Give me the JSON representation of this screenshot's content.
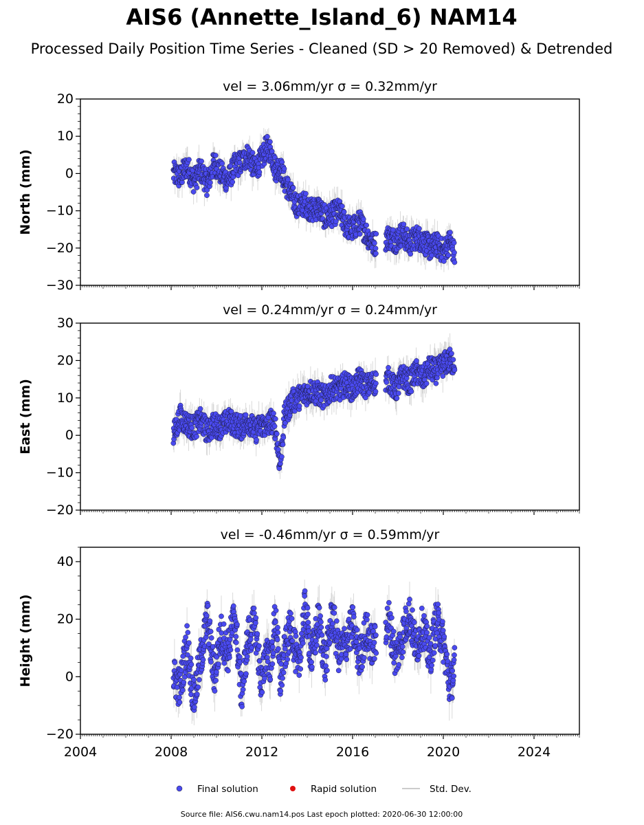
{
  "figure": {
    "title": "AIS6 (Annette_Island_6) NAM14",
    "subtitle": "Processed Daily Position Time Series - Cleaned (SD > 20 Removed) & Detrended",
    "footer": "Source file: AIS6.cwu.nam14.pos  Last epoch plotted: 2020-06-30 12:00:00",
    "legend": [
      {
        "label": "Final solution",
        "color": "#4a4af0"
      },
      {
        "label": "Rapid solution",
        "color": "#e01010"
      },
      {
        "label": "Std. Dev.",
        "color": "#cccccc"
      }
    ],
    "x_ticks": [
      "2004",
      "2008",
      "2012",
      "2016",
      "2020",
      "2024"
    ]
  },
  "chart_data": [
    {
      "type": "scatter",
      "title": "vel = 3.06mm/yr   σ = 0.32mm/yr",
      "ylabel": "North (mm)",
      "xlim": [
        2004,
        2026
      ],
      "ylim": [
        -30,
        20
      ],
      "yticks": [
        "−30",
        "−20",
        "−10",
        "0",
        "10",
        "20"
      ],
      "grid": false,
      "series": [
        {
          "name": "Final solution",
          "x": [
            2008.1,
            2008.4,
            2008.7,
            2009.0,
            2009.3,
            2009.6,
            2009.9,
            2010.2,
            2010.5,
            2010.8,
            2011.1,
            2011.4,
            2011.7,
            2012.0,
            2012.2,
            2012.4,
            2012.6,
            2012.8,
            2013.0,
            2013.3,
            2013.6,
            2013.9,
            2014.2,
            2014.5,
            2014.8,
            2015.1,
            2015.4,
            2015.7,
            2016.0,
            2016.3,
            2016.6,
            2016.9,
            2017.6,
            2017.9,
            2018.2,
            2018.5,
            2018.8,
            2019.1,
            2019.4,
            2019.7,
            2020.0,
            2020.3,
            2020.5
          ],
          "y": [
            0,
            -1,
            2,
            -2,
            1,
            -3,
            3,
            0,
            -2,
            2,
            3,
            5,
            1,
            4,
            7,
            6,
            1,
            2,
            -2,
            -6,
            -9,
            -8,
            -10,
            -9,
            -12,
            -11,
            -10,
            -14,
            -15,
            -13,
            -16,
            -19,
            -17,
            -18,
            -16,
            -19,
            -17,
            -18,
            -20,
            -19,
            -21,
            -18,
            -22
          ]
        }
      ]
    },
    {
      "type": "scatter",
      "title": "vel = 0.24mm/yr   σ = 0.24mm/yr",
      "ylabel": "East (mm)",
      "xlim": [
        2004,
        2026
      ],
      "ylim": [
        -20,
        30
      ],
      "yticks": [
        "−20",
        "−10",
        "0",
        "10",
        "20",
        "30"
      ],
      "grid": false,
      "series": [
        {
          "name": "Final solution",
          "x": [
            2008.1,
            2008.4,
            2008.7,
            2009.0,
            2009.3,
            2009.6,
            2009.9,
            2010.2,
            2010.5,
            2010.8,
            2011.1,
            2011.4,
            2011.7,
            2012.0,
            2012.2,
            2012.4,
            2012.6,
            2012.8,
            2013.0,
            2013.3,
            2013.6,
            2013.9,
            2014.2,
            2014.5,
            2014.8,
            2015.1,
            2015.4,
            2015.7,
            2016.0,
            2016.3,
            2016.6,
            2016.9,
            2017.6,
            2017.9,
            2018.2,
            2018.5,
            2018.8,
            2019.1,
            2019.4,
            2019.7,
            2020.0,
            2020.3,
            2020.5
          ],
          "y": [
            0,
            5,
            3,
            2,
            4,
            1,
            3,
            2,
            4,
            3,
            2,
            4,
            1,
            3,
            2,
            4,
            2,
            -8,
            5,
            9,
            10,
            11,
            12,
            11,
            10,
            13,
            12,
            14,
            12,
            15,
            13,
            14,
            15,
            12,
            16,
            14,
            17,
            15,
            18,
            17,
            19,
            20,
            19
          ]
        }
      ]
    },
    {
      "type": "scatter",
      "title": "vel = -0.46mm/yr   σ = 0.59mm/yr",
      "ylabel": "Height (mm)",
      "xlim": [
        2004,
        2026
      ],
      "ylim": [
        -20,
        45
      ],
      "yticks": [
        "−20",
        "0",
        "20",
        "40"
      ],
      "grid": false,
      "series": [
        {
          "name": "Final solution",
          "x": [
            2008.1,
            2008.4,
            2008.7,
            2009.0,
            2009.3,
            2009.6,
            2009.9,
            2010.2,
            2010.5,
            2010.8,
            2011.1,
            2011.4,
            2011.7,
            2012.0,
            2012.2,
            2012.4,
            2012.6,
            2012.8,
            2013.0,
            2013.3,
            2013.6,
            2013.9,
            2014.2,
            2014.5,
            2014.8,
            2015.1,
            2015.4,
            2015.7,
            2016.0,
            2016.3,
            2016.6,
            2016.9,
            2017.6,
            2017.9,
            2018.2,
            2018.5,
            2018.8,
            2019.1,
            2019.4,
            2019.7,
            2020.0,
            2020.3,
            2020.5
          ],
          "y": [
            0,
            -4,
            12,
            -8,
            6,
            20,
            0,
            15,
            8,
            22,
            -6,
            14,
            18,
            -4,
            10,
            4,
            22,
            -2,
            8,
            18,
            2,
            24,
            6,
            20,
            4,
            22,
            8,
            12,
            18,
            6,
            16,
            10,
            20,
            6,
            14,
            22,
            10,
            18,
            6,
            20,
            12,
            -4,
            4
          ]
        }
      ]
    }
  ]
}
